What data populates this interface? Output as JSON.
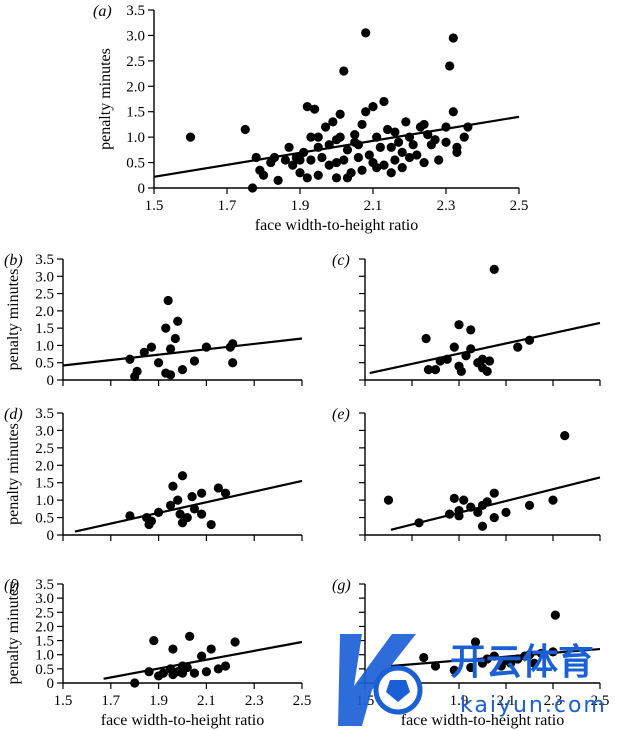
{
  "chart_data": [
    {
      "id": "a",
      "type": "scatter",
      "panel_label": "a",
      "xlabel": "face width-to-height ratio",
      "ylabel": "penalty minutes",
      "xlim": [
        1.5,
        2.5
      ],
      "ylim": [
        0,
        3.5
      ],
      "xticks": [
        "1.5",
        "1.7",
        "1.9",
        "2.1",
        "2.3",
        "2.5"
      ],
      "yticks": [
        "0",
        "0.5",
        "1.0",
        "1.5",
        "2.0",
        "2.5",
        "3.0",
        "3.5"
      ],
      "fit_line": [
        [
          1.5,
          0.22
        ],
        [
          2.5,
          1.4
        ]
      ],
      "points": [
        [
          1.6,
          1.0
        ],
        [
          1.75,
          1.15
        ],
        [
          1.77,
          0.0
        ],
        [
          1.78,
          0.6
        ],
        [
          1.79,
          0.35
        ],
        [
          1.8,
          0.25
        ],
        [
          1.82,
          0.5
        ],
        [
          1.83,
          0.6
        ],
        [
          1.84,
          0.15
        ],
        [
          1.86,
          0.55
        ],
        [
          1.87,
          0.8
        ],
        [
          1.88,
          0.45
        ],
        [
          1.89,
          0.6
        ],
        [
          1.9,
          0.3
        ],
        [
          1.91,
          0.7
        ],
        [
          1.92,
          1.6
        ],
        [
          1.93,
          1.0
        ],
        [
          1.93,
          0.55
        ],
        [
          1.94,
          1.55
        ],
        [
          1.95,
          0.25
        ],
        [
          1.96,
          0.6
        ],
        [
          1.97,
          1.2
        ],
        [
          1.98,
          0.45
        ],
        [
          1.98,
          0.85
        ],
        [
          1.99,
          1.3
        ],
        [
          2.0,
          0.2
        ],
        [
          2.0,
          0.5
        ],
        [
          2.01,
          1.0
        ],
        [
          2.01,
          1.45
        ],
        [
          2.02,
          2.3
        ],
        [
          2.03,
          0.75
        ],
        [
          2.03,
          0.2
        ],
        [
          2.05,
          0.9
        ],
        [
          2.05,
          1.05
        ],
        [
          2.06,
          0.6
        ],
        [
          2.07,
          0.35
        ],
        [
          2.08,
          1.5
        ],
        [
          2.08,
          3.05
        ],
        [
          2.1,
          0.5
        ],
        [
          2.1,
          1.6
        ],
        [
          2.11,
          1.0
        ],
        [
          2.12,
          0.8
        ],
        [
          2.13,
          1.7
        ],
        [
          2.13,
          0.45
        ],
        [
          2.15,
          0.3
        ],
        [
          2.15,
          0.8
        ],
        [
          2.16,
          1.1
        ],
        [
          2.17,
          0.9
        ],
        [
          2.18,
          0.4
        ],
        [
          2.19,
          1.3
        ],
        [
          2.2,
          0.6
        ],
        [
          2.2,
          1.0
        ],
        [
          2.22,
          0.65
        ],
        [
          2.23,
          1.2
        ],
        [
          2.24,
          0.5
        ],
        [
          2.25,
          1.05
        ],
        [
          2.26,
          0.85
        ],
        [
          2.28,
          0.55
        ],
        [
          2.3,
          1.2
        ],
        [
          2.3,
          0.9
        ],
        [
          2.32,
          1.5
        ],
        [
          2.33,
          0.8
        ],
        [
          2.35,
          1.0
        ],
        [
          1.92,
          0.2
        ],
        [
          1.95,
          0.8
        ],
        [
          2.0,
          0.95
        ],
        [
          2.04,
          0.3
        ],
        [
          2.07,
          1.25
        ],
        [
          2.09,
          0.65
        ],
        [
          2.14,
          1.15
        ],
        [
          2.18,
          0.7
        ],
        [
          2.21,
          0.85
        ],
        [
          2.24,
          1.25
        ],
        [
          2.27,
          0.95
        ],
        [
          2.36,
          1.2
        ],
        [
          2.31,
          2.4
        ],
        [
          2.32,
          2.95
        ],
        [
          2.33,
          0.7
        ],
        [
          1.9,
          0.55
        ],
        [
          1.95,
          1.0
        ],
        [
          2.02,
          0.55
        ],
        [
          2.06,
          0.85
        ],
        [
          2.11,
          0.4
        ],
        [
          2.16,
          0.55
        ]
      ]
    },
    {
      "id": "b",
      "type": "scatter",
      "panel_label": "b",
      "xlabel": "",
      "ylabel": "penalty minutes",
      "xlim": [
        1.5,
        2.5
      ],
      "ylim": [
        0,
        3.5
      ],
      "xticks": [],
      "yticks": [
        "0",
        "0.5",
        "1.0",
        "1.5",
        "2.0",
        "2.5",
        "3.0",
        "3.5"
      ],
      "fit_line": [
        [
          1.5,
          0.42
        ],
        [
          2.5,
          1.2
        ]
      ],
      "points": [
        [
          1.78,
          0.6
        ],
        [
          1.8,
          0.1
        ],
        [
          1.81,
          0.25
        ],
        [
          1.84,
          0.8
        ],
        [
          1.87,
          0.95
        ],
        [
          1.9,
          0.5
        ],
        [
          1.93,
          1.5
        ],
        [
          1.93,
          0.2
        ],
        [
          1.94,
          2.3
        ],
        [
          1.95,
          0.15
        ],
        [
          1.95,
          0.9
        ],
        [
          1.97,
          1.2
        ],
        [
          1.98,
          1.7
        ],
        [
          2.0,
          0.3
        ],
        [
          2.05,
          0.55
        ],
        [
          2.1,
          0.95
        ],
        [
          2.2,
          0.95
        ],
        [
          2.21,
          1.05
        ],
        [
          2.21,
          0.5
        ]
      ]
    },
    {
      "id": "c",
      "type": "scatter",
      "panel_label": "c",
      "xlabel": "",
      "ylabel": "",
      "xlim": [
        1.5,
        2.5
      ],
      "ylim": [
        0,
        3.5
      ],
      "xticks": [],
      "yticks": [],
      "fit_line": [
        [
          1.52,
          0.2
        ],
        [
          2.5,
          1.65
        ]
      ],
      "points": [
        [
          1.76,
          1.2
        ],
        [
          1.77,
          0.3
        ],
        [
          1.8,
          0.3
        ],
        [
          1.82,
          0.55
        ],
        [
          1.85,
          0.6
        ],
        [
          1.88,
          0.95
        ],
        [
          1.9,
          0.4
        ],
        [
          1.9,
          1.6
        ],
        [
          1.91,
          0.25
        ],
        [
          1.93,
          0.7
        ],
        [
          1.95,
          0.9
        ],
        [
          1.95,
          1.45
        ],
        [
          2.0,
          0.35
        ],
        [
          2.0,
          0.6
        ],
        [
          2.02,
          0.25
        ],
        [
          2.05,
          3.2
        ],
        [
          2.15,
          0.95
        ],
        [
          2.2,
          1.15
        ],
        [
          1.98,
          0.5
        ],
        [
          2.03,
          0.55
        ]
      ]
    },
    {
      "id": "d",
      "type": "scatter",
      "panel_label": "d",
      "xlabel": "",
      "ylabel": "penalty minutes",
      "xlim": [
        1.5,
        2.5
      ],
      "ylim": [
        0,
        3.5
      ],
      "xticks": [],
      "yticks": [
        "0",
        "0.5",
        "1.0",
        "1.5",
        "2.0",
        "2.5",
        "3.0",
        "3.5"
      ],
      "fit_line": [
        [
          1.55,
          0.1
        ],
        [
          2.5,
          1.55
        ]
      ],
      "points": [
        [
          1.78,
          0.55
        ],
        [
          1.85,
          0.5
        ],
        [
          1.86,
          0.3
        ],
        [
          1.87,
          0.4
        ],
        [
          1.9,
          0.65
        ],
        [
          1.95,
          0.85
        ],
        [
          1.96,
          1.4
        ],
        [
          1.98,
          1.0
        ],
        [
          1.99,
          0.6
        ],
        [
          2.0,
          1.7
        ],
        [
          2.0,
          0.35
        ],
        [
          2.02,
          0.5
        ],
        [
          2.04,
          1.1
        ],
        [
          2.05,
          0.75
        ],
        [
          2.08,
          1.2
        ],
        [
          2.08,
          0.6
        ],
        [
          2.12,
          0.3
        ],
        [
          2.15,
          1.35
        ],
        [
          2.18,
          1.2
        ]
      ]
    },
    {
      "id": "e",
      "type": "scatter",
      "panel_label": "e",
      "xlabel": "",
      "ylabel": "",
      "xlim": [
        1.5,
        2.5
      ],
      "ylim": [
        0,
        3.5
      ],
      "xticks": [],
      "yticks": [],
      "fit_line": [
        [
          1.61,
          0.15
        ],
        [
          2.5,
          1.65
        ]
      ],
      "points": [
        [
          1.6,
          1.0
        ],
        [
          1.73,
          0.35
        ],
        [
          1.86,
          0.6
        ],
        [
          1.88,
          1.05
        ],
        [
          1.9,
          0.55
        ],
        [
          1.9,
          0.7
        ],
        [
          1.92,
          1.0
        ],
        [
          1.98,
          0.65
        ],
        [
          2.0,
          0.85
        ],
        [
          2.0,
          0.25
        ],
        [
          2.05,
          0.5
        ],
        [
          2.05,
          1.2
        ],
        [
          2.1,
          0.65
        ],
        [
          2.2,
          0.85
        ],
        [
          2.3,
          1.0
        ],
        [
          2.35,
          2.85
        ],
        [
          1.95,
          0.8
        ],
        [
          2.02,
          0.95
        ]
      ]
    },
    {
      "id": "f",
      "type": "scatter",
      "panel_label": "f",
      "xlabel": "face width-to-height ratio",
      "ylabel": "penalty minutes",
      "xlim": [
        1.5,
        2.5
      ],
      "ylim": [
        0,
        3.5
      ],
      "xticks": [
        "1.5",
        "1.7",
        "1.9",
        "2.1",
        "2.3",
        "2.5"
      ],
      "yticks": [
        "0",
        "0.5",
        "1.0",
        "1.5",
        "2.0",
        "2.5",
        "3.0",
        "3.5"
      ],
      "fit_line": [
        [
          1.67,
          0.15
        ],
        [
          2.5,
          1.45
        ]
      ],
      "points": [
        [
          1.8,
          0.0
        ],
        [
          1.86,
          0.4
        ],
        [
          1.88,
          1.5
        ],
        [
          1.9,
          0.25
        ],
        [
          1.92,
          0.35
        ],
        [
          1.95,
          0.5
        ],
        [
          1.96,
          0.3
        ],
        [
          1.96,
          1.2
        ],
        [
          1.98,
          0.4
        ],
        [
          2.0,
          0.6
        ],
        [
          2.02,
          0.55
        ],
        [
          2.03,
          1.65
        ],
        [
          2.05,
          0.35
        ],
        [
          2.08,
          0.95
        ],
        [
          2.1,
          0.4
        ],
        [
          2.12,
          1.2
        ],
        [
          2.15,
          0.5
        ],
        [
          2.18,
          0.6
        ],
        [
          2.22,
          1.45
        ],
        [
          2.0,
          0.35
        ]
      ]
    },
    {
      "id": "g",
      "type": "scatter",
      "panel_label": "g",
      "xlabel": "face width-to-height ratio",
      "ylabel": "",
      "xlim": [
        1.5,
        2.5
      ],
      "ylim": [
        0,
        3.5
      ],
      "xticks": [
        "1.5",
        "1.7",
        "1.9",
        "2.1",
        "2.3",
        "2.5"
      ],
      "yticks": [],
      "fit_line": [
        [
          1.61,
          0.6
        ],
        [
          2.5,
          1.2
        ]
      ],
      "points": [
        [
          1.75,
          0.9
        ],
        [
          1.8,
          0.6
        ],
        [
          1.88,
          0.45
        ],
        [
          1.95,
          0.55
        ],
        [
          1.97,
          1.45
        ],
        [
          2.0,
          0.7
        ],
        [
          2.02,
          0.85
        ],
        [
          2.05,
          0.95
        ],
        [
          2.08,
          0.6
        ],
        [
          2.12,
          0.7
        ],
        [
          2.15,
          0.85
        ],
        [
          2.2,
          1.0
        ],
        [
          2.22,
          0.7
        ],
        [
          2.25,
          1.05
        ],
        [
          2.3,
          1.1
        ],
        [
          2.31,
          2.4
        ],
        [
          2.1,
          0.8
        ],
        [
          2.18,
          0.95
        ]
      ]
    }
  ],
  "watermark": {
    "logo_text": "开云体育",
    "url_text": "kaiyun.com",
    "color": "#1b5fd6"
  }
}
